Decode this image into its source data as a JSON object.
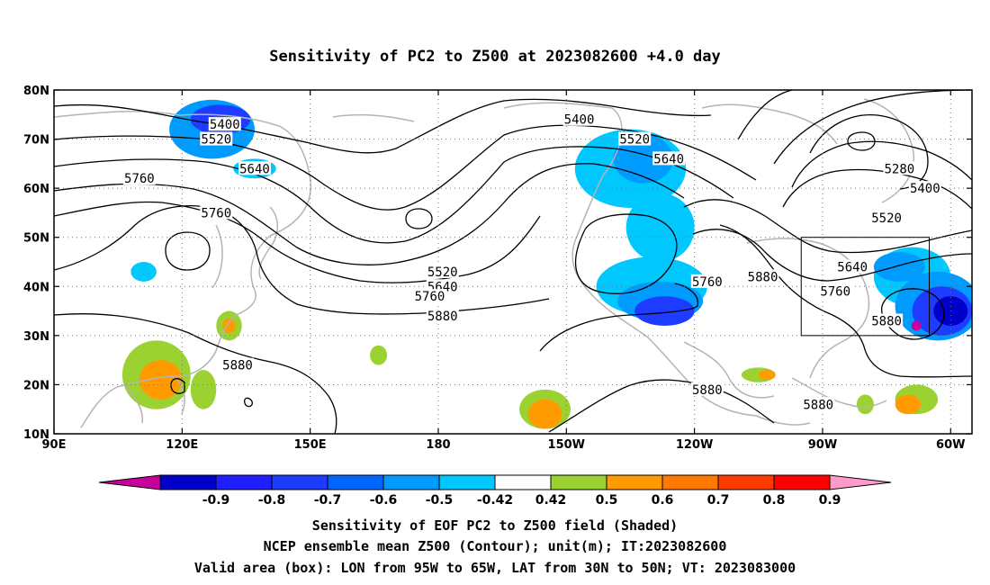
{
  "title": "Sensitivity of PC2 to Z500 at 2023082600 +4.0 day",
  "map": {
    "lon_range": [
      90,
      305
    ],
    "lat_range": [
      10,
      80
    ],
    "x_ticks": [
      {
        "lon": 90,
        "label": "90E"
      },
      {
        "lon": 120,
        "label": "120E"
      },
      {
        "lon": 150,
        "label": "150E"
      },
      {
        "lon": 180,
        "label": "180"
      },
      {
        "lon": 210,
        "label": "150W"
      },
      {
        "lon": 240,
        "label": "120W"
      },
      {
        "lon": 270,
        "label": "90W"
      },
      {
        "lon": 300,
        "label": "60W"
      }
    ],
    "y_ticks": [
      {
        "lat": 10,
        "label": "10N"
      },
      {
        "lat": 20,
        "label": "20N"
      },
      {
        "lat": 30,
        "label": "30N"
      },
      {
        "lat": 40,
        "label": "40N"
      },
      {
        "lat": 50,
        "label": "50N"
      },
      {
        "lat": 60,
        "label": "60N"
      },
      {
        "lat": 70,
        "label": "70N"
      },
      {
        "lat": 80,
        "label": "80N"
      }
    ],
    "grid": "dotted",
    "valid_box": {
      "lon": [
        265,
        295
      ],
      "lat": [
        30,
        50
      ]
    }
  },
  "contour_labels": [
    {
      "text": "5400",
      "lon": 130,
      "lat": 73
    },
    {
      "text": "5520",
      "lon": 128,
      "lat": 70
    },
    {
      "text": "5640",
      "lon": 137,
      "lat": 64
    },
    {
      "text": "5760",
      "lon": 110,
      "lat": 62
    },
    {
      "text": "5760",
      "lon": 128,
      "lat": 55
    },
    {
      "text": "5520",
      "lon": 181,
      "lat": 43
    },
    {
      "text": "5640",
      "lon": 181,
      "lat": 40
    },
    {
      "text": "5760",
      "lon": 178,
      "lat": 38
    },
    {
      "text": "5880",
      "lon": 181,
      "lat": 34
    },
    {
      "text": "5880",
      "lon": 133,
      "lat": 24
    },
    {
      "text": "5400",
      "lon": 213,
      "lat": 74
    },
    {
      "text": "5520",
      "lon": 226,
      "lat": 70
    },
    {
      "text": "5640",
      "lon": 234,
      "lat": 66
    },
    {
      "text": "5760",
      "lon": 243,
      "lat": 41
    },
    {
      "text": "5880",
      "lon": 256,
      "lat": 42
    },
    {
      "text": "5880",
      "lon": 243,
      "lat": 19
    },
    {
      "text": "5880",
      "lon": 269,
      "lat": 16
    },
    {
      "text": "5280",
      "lon": 288,
      "lat": 64
    },
    {
      "text": "5400",
      "lon": 294,
      "lat": 60
    },
    {
      "text": "5520",
      "lon": 285,
      "lat": 54
    },
    {
      "text": "5640",
      "lon": 277,
      "lat": 44
    },
    {
      "text": "5760",
      "lon": 273,
      "lat": 39
    },
    {
      "text": "5880",
      "lon": 285,
      "lat": 33
    }
  ],
  "shaded_regions": [
    {
      "color": "#009bff",
      "lon": 127,
      "lat": 72,
      "rx": 10,
      "ry": 6
    },
    {
      "color": "#1e3cff",
      "lon": 129,
      "lat": 74,
      "rx": 7,
      "ry": 3
    },
    {
      "color": "#00c8ff",
      "lon": 137,
      "lat": 64,
      "rx": 5,
      "ry": 2
    },
    {
      "color": "#00c8ff",
      "lon": 111,
      "lat": 43,
      "rx": 3,
      "ry": 2
    },
    {
      "color": "#00c8ff",
      "lon": 225,
      "lat": 64,
      "rx": 13,
      "ry": 8
    },
    {
      "color": "#009bff",
      "lon": 228,
      "lat": 66,
      "rx": 7,
      "ry": 5
    },
    {
      "color": "#00c8ff",
      "lon": 232,
      "lat": 52,
      "rx": 8,
      "ry": 7
    },
    {
      "color": "#00c8ff",
      "lon": 230,
      "lat": 40,
      "rx": 13,
      "ry": 6
    },
    {
      "color": "#009bff",
      "lon": 232,
      "lat": 37,
      "rx": 10,
      "ry": 4
    },
    {
      "color": "#1e3cff",
      "lon": 233,
      "lat": 35,
      "rx": 7,
      "ry": 3
    },
    {
      "color": "#00c8ff",
      "lon": 291,
      "lat": 42,
      "rx": 9,
      "ry": 6
    },
    {
      "color": "#009bff",
      "lon": 288,
      "lat": 44,
      "rx": 6,
      "ry": 3
    },
    {
      "color": "#009bff",
      "lon": 297,
      "lat": 36,
      "rx": 10,
      "ry": 7
    },
    {
      "color": "#1e3cff",
      "lon": 298,
      "lat": 35,
      "rx": 7,
      "ry": 5
    },
    {
      "color": "#0000c8",
      "lon": 300,
      "lat": 35,
      "rx": 4,
      "ry": 3
    },
    {
      "color": "#c8009b",
      "lon": 292,
      "lat": 32,
      "rx": 1.2,
      "ry": 1
    },
    {
      "color": "#9bd232",
      "lon": 114,
      "lat": 22,
      "rx": 8,
      "ry": 7
    },
    {
      "color": "#ff9b00",
      "lon": 115,
      "lat": 21,
      "rx": 5,
      "ry": 4
    },
    {
      "color": "#9bd232",
      "lon": 125,
      "lat": 19,
      "rx": 3,
      "ry": 4
    },
    {
      "color": "#9bd232",
      "lon": 131,
      "lat": 32,
      "rx": 3,
      "ry": 3
    },
    {
      "color": "#ff9b00",
      "lon": 131,
      "lat": 32,
      "rx": 1.5,
      "ry": 1.5
    },
    {
      "color": "#9bd232",
      "lon": 166,
      "lat": 26,
      "rx": 2,
      "ry": 2
    },
    {
      "color": "#9bd232",
      "lon": 205,
      "lat": 15,
      "rx": 6,
      "ry": 4
    },
    {
      "color": "#ff9b00",
      "lon": 205,
      "lat": 14,
      "rx": 4,
      "ry": 3
    },
    {
      "color": "#9bd232",
      "lon": 255,
      "lat": 22,
      "rx": 4,
      "ry": 1.5
    },
    {
      "color": "#ff9b00",
      "lon": 257,
      "lat": 22,
      "rx": 2,
      "ry": 1
    },
    {
      "color": "#9bd232",
      "lon": 280,
      "lat": 16,
      "rx": 2,
      "ry": 2
    },
    {
      "color": "#9bd232",
      "lon": 292,
      "lat": 17,
      "rx": 5,
      "ry": 3
    },
    {
      "color": "#ff9b00",
      "lon": 290,
      "lat": 16,
      "rx": 3,
      "ry": 2
    }
  ],
  "colorbar": {
    "levels": [
      "-0.9",
      "-0.8",
      "-0.7",
      "-0.6",
      "-0.5",
      "-0.42",
      "0.42",
      "0.5",
      "0.6",
      "0.7",
      "0.8",
      "0.9"
    ],
    "colors": [
      "#0000c8",
      "#1e1eff",
      "#1e3cff",
      "#0064ff",
      "#009bff",
      "#00c8ff",
      "#ffffff",
      "#9bd232",
      "#ff9b00",
      "#ff7800",
      "#ff3c00",
      "#ff0000"
    ],
    "low_end_color": "#c8009b",
    "high_end_color": "#ff9bc8"
  },
  "caption": {
    "line1": "Sensitivity of EOF PC2 to Z500 field (Shaded)",
    "line2": "NCEP ensemble mean Z500 (Contour); unit(m); IT:2023082600",
    "line3": "Valid area (box): LON from 95W to 65W, LAT from 30N to 50N; VT: 2023083000"
  }
}
